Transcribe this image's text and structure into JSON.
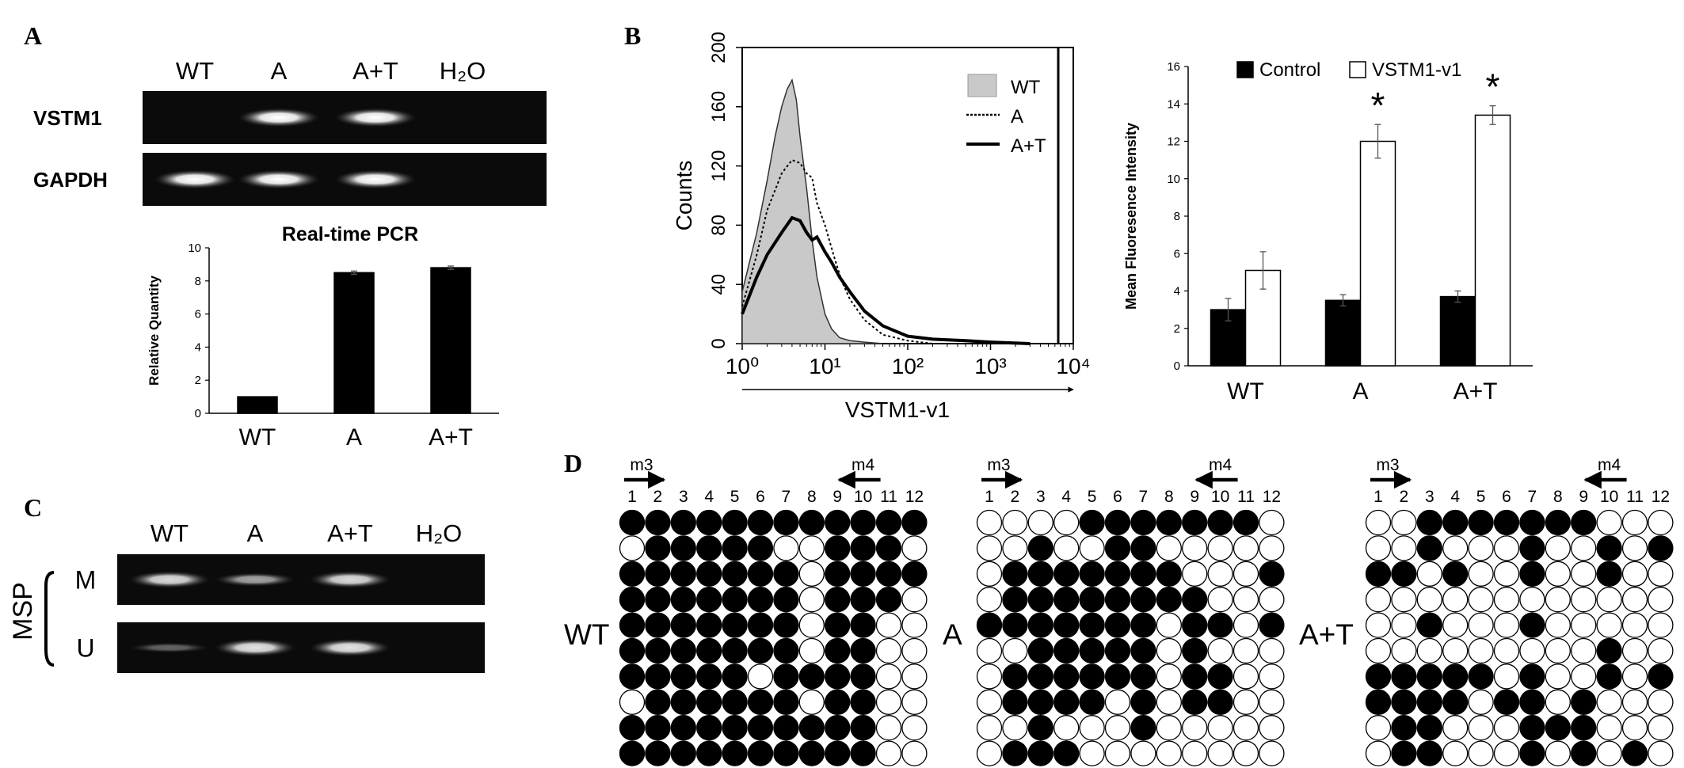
{
  "panels": {
    "A": {
      "label": "A",
      "gel": {
        "lanes": [
          "WT",
          "A",
          "A+T",
          "H₂O"
        ],
        "rows": [
          {
            "name": "VSTM1",
            "bands": [
              0,
              1,
              1,
              0
            ]
          },
          {
            "name": "GAPDH",
            "bands": [
              1,
              1,
              1,
              0
            ]
          }
        ]
      }
    },
    "B": {
      "label": "B"
    },
    "C": {
      "label": "C",
      "gel": {
        "lanes": [
          "WT",
          "A",
          "A+T",
          "H₂O"
        ],
        "group_label": "MSP",
        "rows": [
          {
            "name": "M",
            "bands": [
              0.8,
              0.5,
              0.8,
              0
            ]
          },
          {
            "name": "U",
            "bands": [
              0.15,
              0.85,
              0.85,
              0
            ]
          }
        ]
      }
    },
    "D": {
      "label": "D",
      "primer_forward": "m3",
      "primer_reverse": "m4",
      "site_numbers": [
        "1",
        "2",
        "3",
        "4",
        "5",
        "6",
        "7",
        "8",
        "9",
        "10",
        "11",
        "12"
      ],
      "grids": [
        {
          "name": "WT",
          "rows": [
            "111111111111",
            "011111001110",
            "111111101111",
            "111111101110",
            "111111101100",
            "111111101100",
            "111110111100",
            "011111101100",
            "111111111100",
            "111111111100"
          ]
        },
        {
          "name": "A",
          "rows": [
            "000011111110",
            "001001100000",
            "011111110001",
            "011111111000",
            "111111101101",
            "001111101000",
            "011111101100",
            "011110101100",
            "001000100000",
            "011100000000"
          ]
        },
        {
          "name": "A+T",
          "rows": [
            "001111111000",
            "001000100101",
            "110100100100",
            "000000000000",
            "001000100000",
            "000000000100",
            "111110100101",
            "111101101000",
            "011000111000",
            "011000101010"
          ]
        }
      ]
    }
  },
  "chart_data": [
    {
      "type": "bar",
      "title": "Real-time PCR",
      "xlabel": "",
      "ylabel": "Relative Quantity",
      "categories": [
        "WT",
        "A",
        "A+T"
      ],
      "series": [
        {
          "values": [
            1.0,
            8.5,
            8.8
          ],
          "error": [
            0.0,
            0.1,
            0.1
          ],
          "color": "#000000"
        }
      ],
      "ylim": [
        0,
        10
      ],
      "yticks": [
        0,
        2,
        4,
        6,
        8,
        10
      ],
      "grid": false
    },
    {
      "type": "line",
      "xlabel": "VSTM1-v1",
      "ylabel": "Counts",
      "xscale": "log",
      "xlim": [
        1,
        10000
      ],
      "xticks": [
        "10⁰",
        "10¹",
        "10²",
        "10³",
        "10⁴"
      ],
      "ylim": [
        0,
        200
      ],
      "yticks": [
        0,
        40,
        80,
        120,
        160,
        200
      ],
      "legend_position": "top-right",
      "series": [
        {
          "name": "WT",
          "style": "filled-gray",
          "x": [
            1,
            1.5,
            2,
            2.5,
            3,
            3.5,
            4,
            4.5,
            5,
            6,
            7,
            8,
            10,
            12,
            15,
            20,
            30,
            50
          ],
          "y": [
            35,
            75,
            110,
            140,
            160,
            172,
            178,
            165,
            140,
            105,
            70,
            45,
            20,
            10,
            4,
            2,
            1,
            0
          ]
        },
        {
          "name": "A",
          "style": "dotted",
          "x": [
            1,
            1.5,
            2,
            3,
            4,
            5,
            6,
            7,
            8,
            10,
            13,
            16,
            20,
            30,
            50,
            100,
            200
          ],
          "y": [
            25,
            60,
            90,
            115,
            124,
            122,
            115,
            112,
            95,
            80,
            58,
            42,
            30,
            16,
            6,
            2,
            0
          ]
        },
        {
          "name": "A+T",
          "style": "thick-solid",
          "x": [
            1,
            1.5,
            2,
            3,
            4,
            5,
            6,
            7,
            8,
            10,
            12,
            15,
            20,
            30,
            50,
            100,
            200,
            500,
            1000,
            3000
          ],
          "y": [
            20,
            45,
            60,
            75,
            85,
            83,
            75,
            70,
            72,
            62,
            55,
            45,
            35,
            22,
            12,
            5,
            3,
            2,
            1,
            0
          ]
        }
      ]
    },
    {
      "type": "bar",
      "xlabel": "",
      "ylabel": "Mean Fluoresence Intensity",
      "categories": [
        "WT",
        "A",
        "A+T"
      ],
      "series": [
        {
          "name": "Control",
          "values": [
            3.0,
            3.5,
            3.7
          ],
          "error": [
            0.6,
            0.3,
            0.3
          ],
          "color": "#000000"
        },
        {
          "name": "VSTM1-v1",
          "values": [
            5.1,
            12.0,
            13.4
          ],
          "error": [
            1.0,
            0.9,
            0.5
          ],
          "color": "#ffffff"
        }
      ],
      "annotations": [
        "",
        "*",
        "*"
      ],
      "ylim": [
        0,
        16
      ],
      "yticks": [
        0,
        2,
        4,
        6,
        8,
        10,
        12,
        14,
        16
      ],
      "legend_position": "top",
      "grid": false
    }
  ]
}
